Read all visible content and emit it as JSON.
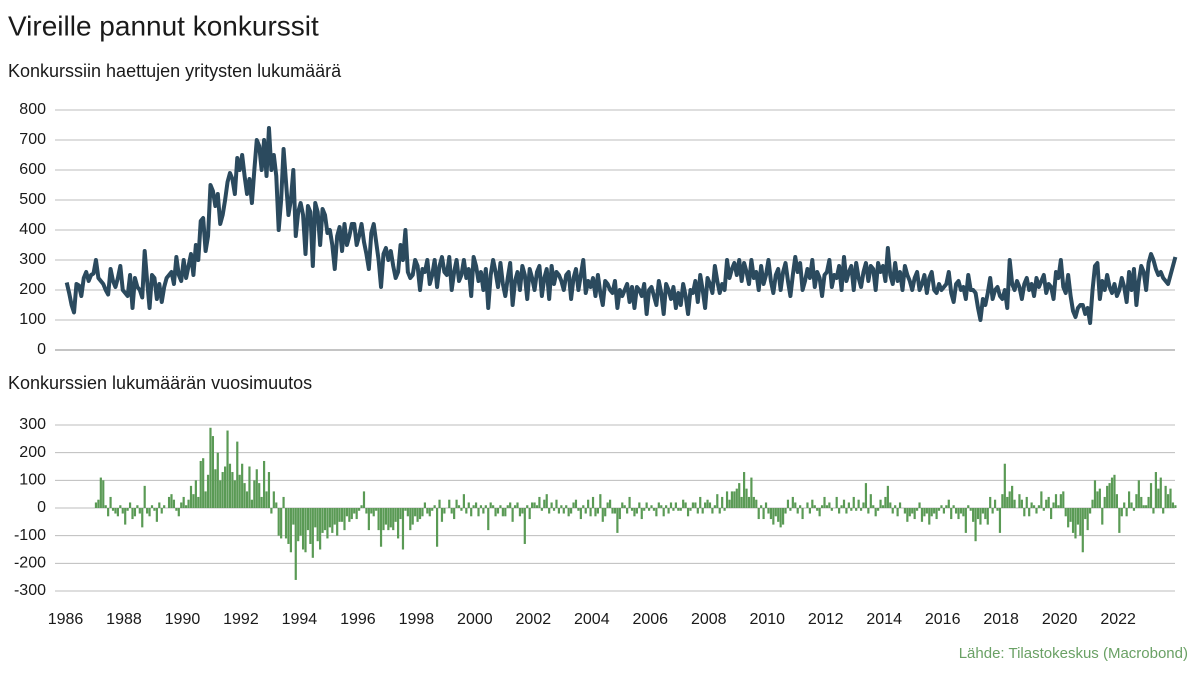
{
  "title": "Vireille pannut konkurssit",
  "source": "Lähde: Tilastokeskus (Macrobond)",
  "chart_data": [
    {
      "type": "line",
      "subtitle": "Konkurssiin haettujen yritysten lukumäärä",
      "color": "#2b4a5e",
      "xlim": [
        1986,
        2024
      ],
      "ylim": [
        0,
        800
      ],
      "yticks": [
        0,
        100,
        200,
        300,
        400,
        500,
        600,
        700,
        800
      ],
      "grid": true,
      "values": [
        225,
        190,
        150,
        125,
        220,
        215,
        180,
        240,
        260,
        230,
        250,
        255,
        300,
        240,
        230,
        220,
        200,
        185,
        270,
        230,
        210,
        240,
        280,
        200,
        190,
        180,
        250,
        140,
        240,
        210,
        200,
        175,
        330,
        230,
        140,
        250,
        240,
        170,
        220,
        160,
        210,
        240,
        250,
        260,
        220,
        310,
        250,
        230,
        300,
        240,
        280,
        320,
        250,
        350,
        300,
        430,
        440,
        330,
        380,
        550,
        530,
        480,
        520,
        420,
        450,
        500,
        560,
        590,
        570,
        520,
        640,
        600,
        650,
        580,
        520,
        570,
        490,
        600,
        700,
        680,
        600,
        700,
        580,
        740,
        600,
        650,
        580,
        400,
        500,
        670,
        560,
        450,
        500,
        600,
        380,
        460,
        490,
        450,
        320,
        480,
        460,
        280,
        490,
        460,
        350,
        470,
        450,
        390,
        400,
        350,
        270,
        380,
        410,
        330,
        420,
        350,
        380,
        420,
        420,
        350,
        380,
        420,
        360,
        320,
        270,
        390,
        420,
        360,
        300,
        210,
        320,
        340,
        300,
        330,
        280,
        240,
        260,
        350,
        300,
        400,
        260,
        240,
        250,
        300,
        280,
        200,
        270,
        260,
        300,
        220,
        250,
        300,
        210,
        280,
        310,
        260,
        250,
        310,
        200,
        260,
        300,
        230,
        250,
        300,
        240,
        270,
        180,
        310,
        280,
        230,
        260,
        200,
        270,
        140,
        250,
        300,
        260,
        210,
        290,
        220,
        180,
        240,
        290,
        150,
        230,
        260,
        200,
        280,
        250,
        170,
        270,
        240,
        200,
        260,
        280,
        180,
        240,
        270,
        170,
        280,
        220,
        260,
        250,
        230,
        200,
        250,
        260,
        170,
        240,
        270,
        200,
        250,
        300,
        190,
        230,
        210,
        240,
        180,
        250,
        190,
        150,
        230,
        220,
        200,
        190,
        230,
        140,
        200,
        180,
        200,
        220,
        160,
        210,
        140,
        210,
        200,
        180,
        220,
        120,
        200,
        210,
        180,
        150,
        230,
        190,
        120,
        220,
        200,
        170,
        210,
        140,
        190,
        150,
        220,
        180,
        120,
        200,
        190,
        230,
        160,
        250,
        200,
        140,
        240,
        220,
        190,
        280,
        230,
        190,
        220,
        200,
        300,
        240,
        270,
        290,
        250,
        300,
        230,
        290,
        260,
        220,
        300,
        240,
        260,
        200,
        280,
        220,
        250,
        300,
        230,
        190,
        250,
        270,
        200,
        260,
        290,
        230,
        180,
        250,
        310,
        260,
        290,
        200,
        230,
        270,
        240,
        300,
        210,
        260,
        240,
        180,
        250,
        260,
        300,
        210,
        250,
        240,
        280,
        200,
        310,
        230,
        260,
        280,
        200,
        290,
        240,
        210,
        260,
        290,
        230,
        280,
        270,
        200,
        290,
        260,
        280,
        230,
        340,
        250,
        220,
        290,
        230,
        260,
        200,
        280,
        250,
        230,
        200,
        240,
        260,
        200,
        220,
        250,
        190,
        240,
        260,
        200,
        190,
        220,
        200,
        210,
        220,
        260,
        190,
        160,
        220,
        230,
        200,
        210,
        170,
        250,
        200,
        200,
        190,
        140,
        100,
        170,
        150,
        190,
        240,
        170,
        200,
        210,
        180,
        170,
        200,
        140,
        300,
        220,
        200,
        230,
        210,
        170,
        220,
        240,
        200,
        220,
        180,
        240,
        210,
        230,
        250,
        190,
        220,
        210,
        170,
        260,
        240,
        300,
        210,
        190,
        250,
        180,
        130,
        110,
        140,
        150,
        150,
        120,
        140,
        90,
        200,
        280,
        290,
        170,
        230,
        200,
        250,
        210,
        190,
        220,
        180,
        200,
        240,
        210,
        160,
        260,
        200,
        270,
        150,
        230,
        280,
        260,
        200,
        290,
        320,
        300,
        270,
        250,
        260,
        240,
        230,
        220,
        250,
        280,
        310
      ]
    },
    {
      "type": "bar",
      "subtitle": "Konkurssien lukumäärän vuosimuutos",
      "color": "#5a9a55",
      "xlim": [
        1986,
        2024
      ],
      "xticks": [
        1986,
        1988,
        1990,
        1992,
        1994,
        1996,
        1998,
        2000,
        2002,
        2004,
        2006,
        2008,
        2010,
        2012,
        2014,
        2016,
        2018,
        2020,
        2022
      ],
      "ylim": [
        -300,
        300
      ],
      "yticks": [
        -300,
        -200,
        -100,
        0,
        100,
        200,
        300
      ],
      "grid": true,
      "values": [
        null,
        null,
        null,
        null,
        null,
        null,
        null,
        null,
        null,
        null,
        null,
        null,
        20,
        30,
        110,
        100,
        10,
        -30,
        40,
        -10,
        -20,
        -30,
        10,
        -20,
        -60,
        -10,
        20,
        -40,
        -30,
        10,
        -20,
        -70,
        80,
        -20,
        -30,
        10,
        -10,
        -50,
        20,
        -20,
        10,
        0,
        40,
        50,
        30,
        -10,
        -30,
        20,
        40,
        10,
        30,
        80,
        50,
        100,
        40,
        170,
        180,
        60,
        120,
        290,
        260,
        140,
        200,
        100,
        130,
        150,
        280,
        160,
        130,
        100,
        240,
        120,
        160,
        90,
        60,
        150,
        30,
        100,
        140,
        90,
        40,
        170,
        60,
        130,
        -20,
        60,
        20,
        -100,
        -110,
        40,
        -110,
        -130,
        -160,
        -60,
        -260,
        -120,
        -100,
        -150,
        -160,
        -80,
        -130,
        -180,
        -70,
        -120,
        -150,
        -90,
        -80,
        -110,
        -70,
        -90,
        -60,
        -100,
        -50,
        -50,
        -80,
        -30,
        -50,
        -40,
        -20,
        -40,
        -10,
        10,
        60,
        -20,
        -80,
        -20,
        -30,
        -10,
        -80,
        -140,
        -80,
        -60,
        -80,
        -70,
        -80,
        -50,
        -110,
        -40,
        -150,
        -10,
        -30,
        -80,
        -60,
        -30,
        -50,
        -40,
        -30,
        20,
        -20,
        -30,
        -10,
        10,
        -140,
        30,
        -50,
        -20,
        0,
        30,
        -20,
        -40,
        30,
        10,
        -10,
        50,
        -20,
        20,
        -30,
        10,
        20,
        -30,
        10,
        -20,
        10,
        -80,
        20,
        10,
        -30,
        -20,
        10,
        -30,
        -30,
        10,
        20,
        -50,
        10,
        20,
        -30,
        -20,
        -130,
        10,
        -40,
        20,
        20,
        10,
        40,
        -10,
        30,
        50,
        -20,
        20,
        -10,
        30,
        -20,
        10,
        -20,
        10,
        -30,
        -20,
        20,
        30,
        -10,
        -40,
        10,
        -20,
        30,
        -30,
        40,
        -30,
        -20,
        50,
        -50,
        -30,
        20,
        30,
        -20,
        -20,
        -90,
        -40,
        20,
        10,
        -20,
        40,
        -10,
        -30,
        -20,
        20,
        -40,
        -10,
        20,
        -10,
        10,
        -10,
        -30,
        20,
        10,
        -30,
        10,
        -20,
        20,
        -10,
        20,
        -10,
        -10,
        30,
        20,
        -30,
        -10,
        20,
        20,
        -20,
        40,
        -20,
        20,
        30,
        20,
        -20,
        10,
        50,
        -20,
        40,
        -10,
        60,
        30,
        60,
        60,
        70,
        90,
        40,
        130,
        70,
        40,
        110,
        40,
        30,
        -40,
        10,
        -40,
        20,
        -20,
        -40,
        -60,
        -30,
        -50,
        -70,
        -60,
        -20,
        30,
        -10,
        40,
        20,
        -20,
        10,
        -40,
        0,
        20,
        -20,
        30,
        10,
        -10,
        -30,
        10,
        40,
        10,
        20,
        -10,
        0,
        40,
        -20,
        10,
        30,
        -20,
        20,
        -10,
        40,
        -10,
        30,
        -10,
        20,
        90,
        -20,
        50,
        10,
        -30,
        -10,
        30,
        10,
        40,
        80,
        20,
        -20,
        10,
        -30,
        20,
        0,
        -20,
        -50,
        -30,
        -20,
        -40,
        -10,
        20,
        -50,
        -30,
        -20,
        -60,
        -30,
        -20,
        -40,
        -10,
        10,
        -20,
        10,
        30,
        -40,
        10,
        -20,
        -40,
        -20,
        -30,
        -90,
        10,
        -10,
        -50,
        -120,
        -40,
        -60,
        -20,
        -40,
        -60,
        40,
        -20,
        30,
        -10,
        -90,
        50,
        160,
        40,
        60,
        80,
        30,
        0,
        50,
        30,
        -30,
        40,
        -30,
        20,
        10,
        -20,
        10,
        60,
        -10,
        30,
        40,
        -40,
        20,
        50,
        10,
        50,
        60,
        -30,
        -70,
        -50,
        -90,
        -110,
        -60,
        -100,
        -160,
        -40,
        -80,
        -20,
        30,
        100,
        60,
        70,
        -60,
        40,
        80,
        90,
        110,
        120,
        50,
        -90,
        -30,
        20,
        -30,
        60,
        20,
        -10,
        50,
        100,
        40,
        10,
        10,
        40,
        90,
        -20,
        130,
        70,
        110,
        -20,
        80,
        50,
        70,
        20,
        10
      ]
    }
  ]
}
